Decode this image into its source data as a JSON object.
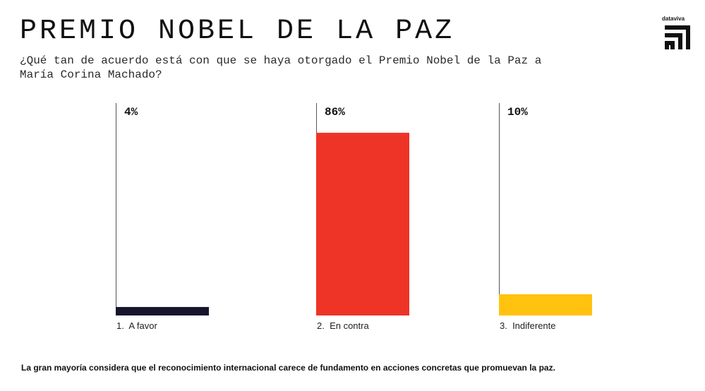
{
  "header": {
    "title": "PREMIO NOBEL DE LA PAZ",
    "subtitle": "¿Qué tan de acuerdo está con que se haya otorgado el Premio Nobel de la Paz a María Corina Machado?"
  },
  "brand": {
    "name": "dataviva",
    "icon": "dataviva-logo-icon"
  },
  "chart_data": {
    "type": "bar",
    "title": "PREMIO NOBEL DE LA PAZ",
    "categories": [
      "1.  A favor",
      "2.  En contra",
      "3.  Indiferente"
    ],
    "values": [
      4,
      86,
      10
    ],
    "value_labels": [
      "4%",
      "86%",
      "10%"
    ],
    "colors": [
      "#17152e",
      "#ee3427",
      "#ffc20e"
    ],
    "ylim": [
      0,
      100
    ],
    "xlabel": "",
    "ylabel": "",
    "grid": false
  },
  "footer": {
    "note": "La gran mayoría considera que el reconocimiento internacional carece de fundamento en acciones concretas que promuevan la paz."
  }
}
